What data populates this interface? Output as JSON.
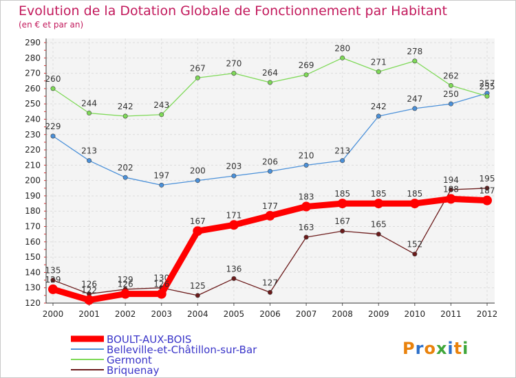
{
  "header": {
    "title": "Evolution de la Dotation Globale de Fonctionnement par Habitant",
    "subtitle": "(en € et par an)"
  },
  "logo": {
    "text": "Proxiti"
  },
  "chart_data": {
    "type": "line",
    "title": "Evolution de la Dotation Globale de Fonctionnement par Habitant",
    "subtitle": "(en € et par an)",
    "xlabel": "",
    "ylabel": "",
    "x": [
      "2000",
      "2001",
      "2002",
      "2003",
      "2004",
      "2005",
      "2006",
      "2007",
      "2008",
      "2009",
      "2010",
      "2011",
      "2012"
    ],
    "ylim": [
      120,
      290
    ],
    "yticks": [
      120,
      130,
      140,
      150,
      160,
      170,
      180,
      190,
      200,
      210,
      220,
      230,
      240,
      250,
      260,
      270,
      280,
      290
    ],
    "grid": true,
    "legend_position": "bottom-left",
    "series": [
      {
        "name": "BOULT-AUX-BOIS",
        "color": "#ff0000",
        "emphasis": true,
        "values": [
          129,
          122,
          126,
          126,
          167,
          171,
          177,
          183,
          185,
          185,
          185,
          188,
          187
        ]
      },
      {
        "name": "Belleville-et-Châtillon-sur-Bar",
        "color": "#4a90d9",
        "values": [
          229,
          213,
          202,
          197,
          200,
          203,
          206,
          210,
          213,
          242,
          247,
          250,
          257
        ]
      },
      {
        "name": "Germont",
        "color": "#7ed957",
        "values": [
          260,
          244,
          242,
          243,
          267,
          270,
          264,
          269,
          280,
          271,
          278,
          262,
          255
        ]
      },
      {
        "name": "Briquenay",
        "color": "#6b1a1a",
        "values": [
          135,
          126,
          129,
          130,
          125,
          136,
          127,
          163,
          167,
          165,
          152,
          194,
          195
        ]
      }
    ]
  }
}
